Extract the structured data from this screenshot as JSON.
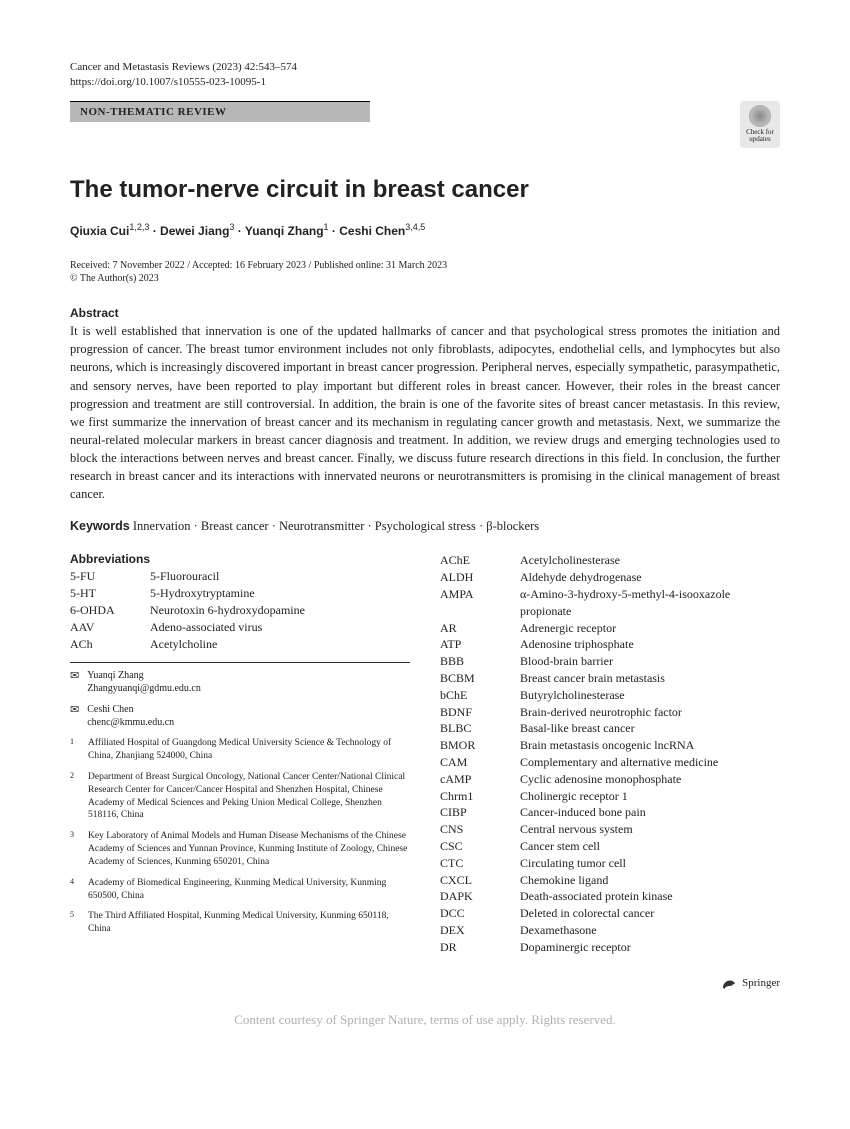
{
  "header": {
    "journal": "Cancer and Metastasis Reviews (2023) 42:543–574",
    "doi": "https://doi.org/10.1007/s10555-023-10095-1",
    "reviewType": "NON-THEMATIC REVIEW",
    "checkUpdates1": "Check for",
    "checkUpdates2": "updates"
  },
  "title": "The tumor-nerve circuit in breast cancer",
  "authors": "Qiuxia Cui<sup>1,2,3</sup> · Dewei Jiang<sup>3</sup> · Yuanqi Zhang<sup>1</sup> · Ceshi Chen<sup>3,4,5</sup>",
  "pubDates": "Received: 7 November 2022 / Accepted: 16 February 2023 / Published online: 31 March 2023",
  "copyright": "© The Author(s) 2023",
  "abstractHeading": "Abstract",
  "abstractText": "It is well established that innervation is one of the updated hallmarks of cancer and that psychological stress promotes the initiation and progression of cancer. The breast tumor environment includes not only fibroblasts, adipocytes, endothelial cells, and lymphocytes but also neurons, which is increasingly discovered important in breast cancer progression. Peripheral nerves, especially sympathetic, parasympathetic, and sensory nerves, have been reported to play important but different roles in breast cancer. However, their roles in the breast cancer progression and treatment are still controversial. In addition, the brain is one of the favorite sites of breast cancer metastasis. In this review, we first summarize the innervation of breast cancer and its mechanism in regulating cancer growth and metastasis. Next, we summarize the neural-related molecular markers in breast cancer diagnosis and treatment. In addition, we review drugs and emerging technologies used to block the interactions between nerves and breast cancer. Finally, we discuss future research directions in this field. In conclusion, the further research in breast cancer and its interactions with innervated neurons or neurotransmitters is promising in the clinical management of breast cancer.",
  "keywordsLabel": "Keywords",
  "keywordsText": "  Innervation · Breast cancer · Neurotransmitter · Psychological stress · β-blockers",
  "abbrevHeading": "Abbreviations",
  "abbrevLeft": [
    {
      "k": "5-FU",
      "v": "5-Fluorouracil"
    },
    {
      "k": "5-HT",
      "v": "5-Hydroxytryptamine"
    },
    {
      "k": "6-OHDA",
      "v": "Neurotoxin 6-hydroxydopamine"
    },
    {
      "k": "AAV",
      "v": "Adeno-associated virus"
    },
    {
      "k": "ACh",
      "v": "Acetylcholine"
    }
  ],
  "corresponding": [
    {
      "name": "Yuanqi Zhang",
      "email": "Zhangyuanqi@gdmu.edu.cn"
    },
    {
      "name": "Ceshi Chen",
      "email": "chenc@kmmu.edu.cn"
    }
  ],
  "affiliations": [
    {
      "n": "1",
      "text": "Affiliated Hospital of Guangdong Medical University Science & Technology of China, Zhanjiang 524000, China"
    },
    {
      "n": "2",
      "text": "Department of Breast Surgical Oncology, National Cancer Center/National Clinical Research Center for Cancer/Cancer Hospital and Shenzhen Hospital, Chinese Academy of Medical Sciences and Peking Union Medical College, Shenzhen 518116, China"
    },
    {
      "n": "3",
      "text": "Key Laboratory of Animal Models and Human Disease Mechanisms of the Chinese Academy of Sciences and Yunnan Province, Kunming Institute of Zoology, Chinese Academy of Sciences, Kunming 650201, China"
    },
    {
      "n": "4",
      "text": "Academy of Biomedical Engineering, Kunming Medical University, Kunming 650500, China"
    },
    {
      "n": "5",
      "text": "The Third Affiliated Hospital, Kunming Medical University, Kunming 650118, China"
    }
  ],
  "abbrevRight": [
    {
      "k": "AChE",
      "v": "Acetylcholinesterase"
    },
    {
      "k": "ALDH",
      "v": "Aldehyde dehydrogenase"
    },
    {
      "k": "AMPA",
      "v": "α-Amino-3-hydroxy-5-methyl-4-isooxazole propionate"
    },
    {
      "k": "AR",
      "v": "Adrenergic receptor"
    },
    {
      "k": "ATP",
      "v": "Adenosine triphosphate"
    },
    {
      "k": "BBB",
      "v": "Blood-brain barrier"
    },
    {
      "k": "BCBM",
      "v": "Breast cancer brain metastasis"
    },
    {
      "k": "bChE",
      "v": "Butyrylcholinesterase"
    },
    {
      "k": "BDNF",
      "v": "Brain-derived neurotrophic factor"
    },
    {
      "k": "BLBC",
      "v": "Basal-like breast cancer"
    },
    {
      "k": "BMOR",
      "v": "Brain metastasis oncogenic lncRNA"
    },
    {
      "k": "CAM",
      "v": "Complementary and alternative medicine"
    },
    {
      "k": "cAMP",
      "v": "Cyclic adenosine monophosphate"
    },
    {
      "k": "Chrm1",
      "v": "Cholinergic receptor 1"
    },
    {
      "k": "CIBP",
      "v": "Cancer-induced bone pain"
    },
    {
      "k": "CNS",
      "v": "Central nervous system"
    },
    {
      "k": "CSC",
      "v": "Cancer stem cell"
    },
    {
      "k": "CTC",
      "v": "Circulating tumor cell"
    },
    {
      "k": "CXCL",
      "v": "Chemokine ligand"
    },
    {
      "k": "DAPK",
      "v": "Death-associated protein kinase"
    },
    {
      "k": "DCC",
      "v": "Deleted in colorectal cancer"
    },
    {
      "k": "DEX",
      "v": "Dexamethasone"
    },
    {
      "k": "DR",
      "v": "Dopaminergic receptor"
    }
  ],
  "publisher": "Springer",
  "watermark": "Content courtesy of Springer Nature, terms of use apply. Rights reserved."
}
